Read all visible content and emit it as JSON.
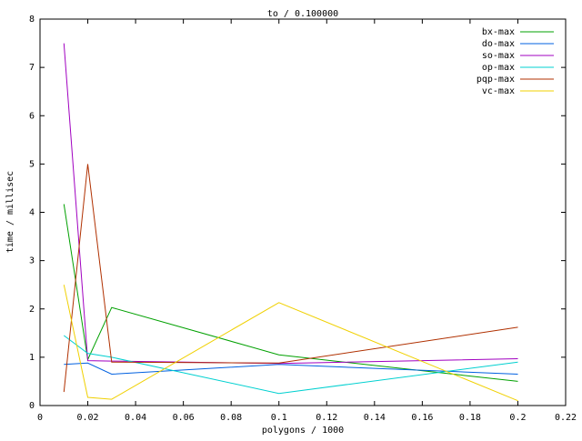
{
  "chart_data": {
    "type": "line",
    "title": "to / 0.100000",
    "xlabel": "polygons / 1000",
    "ylabel": "time / millisec",
    "xlim": [
      0,
      0.22
    ],
    "ylim": [
      0,
      8
    ],
    "xticks": [
      0,
      0.02,
      0.04,
      0.06,
      0.08,
      0.1,
      0.12,
      0.14,
      0.16,
      0.18,
      0.2,
      0.22
    ],
    "xtick_labels": [
      "0",
      "0.02",
      "0.04",
      "0.06",
      "0.08",
      "0.1",
      "0.12",
      "0.14",
      "0.16",
      "0.18",
      "0.2",
      "0.22"
    ],
    "yticks": [
      0,
      1,
      2,
      3,
      4,
      5,
      6,
      7,
      8
    ],
    "ytick_labels": [
      "0",
      "1",
      "2",
      "3",
      "4",
      "5",
      "6",
      "7",
      "8"
    ],
    "grid": false,
    "legend_position": "top-right",
    "x": [
      0.01,
      0.02,
      0.03,
      0.1,
      0.2
    ],
    "series": [
      {
        "name": "bx-max",
        "color": "#00a000",
        "values": [
          4.17,
          0.95,
          2.03,
          1.05,
          0.5
        ]
      },
      {
        "name": "do-max",
        "color": "#0060e0",
        "values": [
          0.85,
          0.88,
          0.65,
          0.85,
          0.65
        ]
      },
      {
        "name": "so-max",
        "color": "#a000c0",
        "values": [
          7.5,
          0.93,
          0.92,
          0.87,
          0.97
        ]
      },
      {
        "name": "op-max",
        "color": "#00d0d0",
        "values": [
          1.45,
          1.08,
          1.0,
          0.25,
          0.9
        ]
      },
      {
        "name": "pqp-max",
        "color": "#b03000",
        "values": [
          0.28,
          5.0,
          0.9,
          0.88,
          1.62
        ]
      },
      {
        "name": "vc-max",
        "color": "#f0d000",
        "values": [
          2.5,
          0.17,
          0.13,
          2.13,
          0.1
        ]
      }
    ]
  }
}
